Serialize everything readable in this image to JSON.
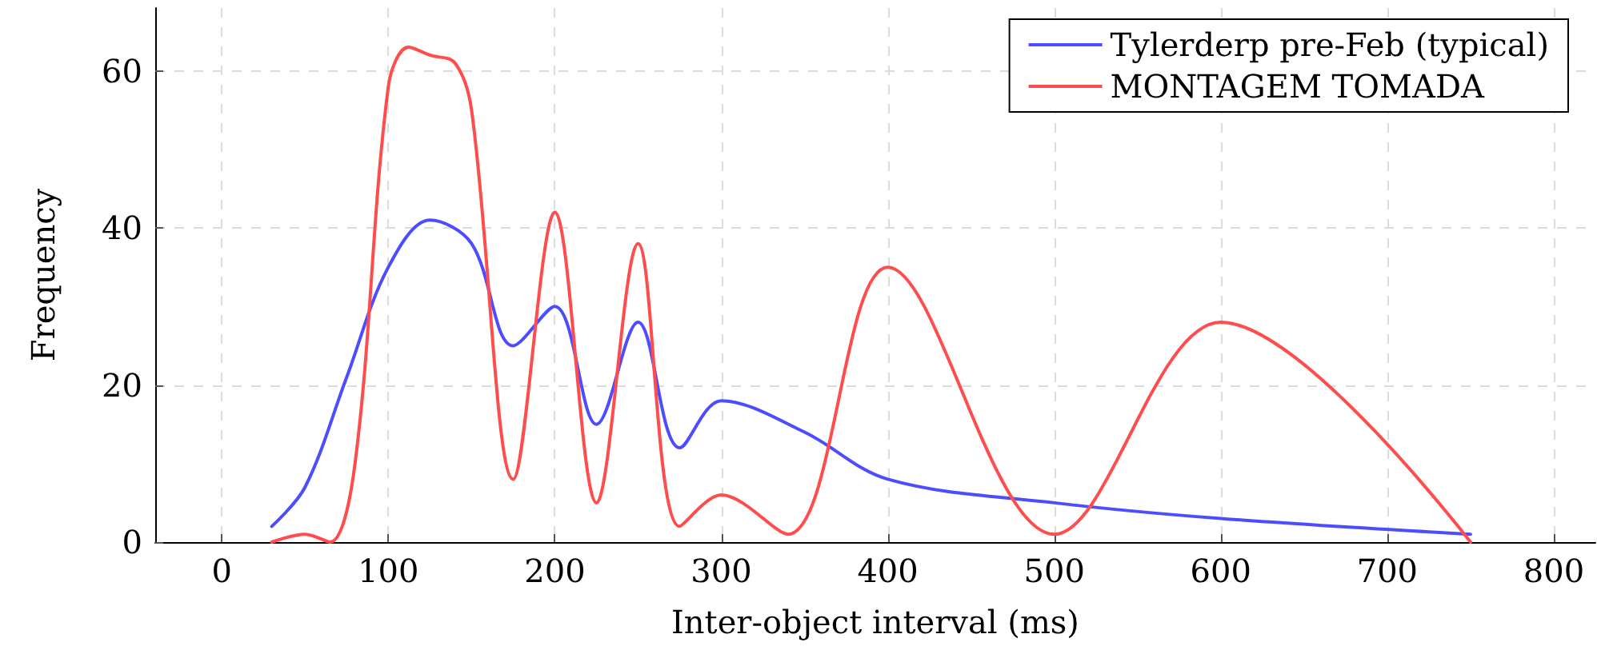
{
  "chart_data": {
    "type": "line",
    "xlabel": "Inter-object interval (ms)",
    "ylabel": "Frequency",
    "xlim": [
      -40,
      825
    ],
    "xticks": [
      0,
      100,
      200,
      300,
      400,
      500,
      600,
      700,
      800
    ],
    "ylim": [
      0,
      68
    ],
    "yticks": [
      0,
      20,
      40,
      60
    ],
    "grid": true,
    "legend": "top right",
    "marker": "none",
    "line_style": "solid",
    "series": [
      {
        "name": "Tylerderp pre-Feb (typical)",
        "color": "#4d4dff",
        "x": [
          30,
          50,
          75,
          100,
          125,
          150,
          175,
          200,
          225,
          250,
          275,
          300,
          350,
          400,
          500,
          600,
          750
        ],
        "values": [
          2,
          7,
          21,
          35,
          41,
          38,
          25,
          30,
          15,
          28,
          12,
          18,
          14,
          8,
          5,
          3,
          1
        ]
      },
      {
        "name": "MONTAGEM TOMADA",
        "color": "#ff4d4d",
        "x": [
          30,
          50,
          65,
          80,
          100,
          112,
          125,
          140,
          150,
          175,
          200,
          225,
          250,
          275,
          300,
          340,
          400,
          500,
          600,
          750
        ],
        "values": [
          0,
          1,
          0,
          10,
          58,
          63,
          62,
          61,
          55,
          8,
          42,
          5,
          38,
          2,
          6,
          1,
          35,
          1,
          28,
          0
        ]
      }
    ]
  }
}
